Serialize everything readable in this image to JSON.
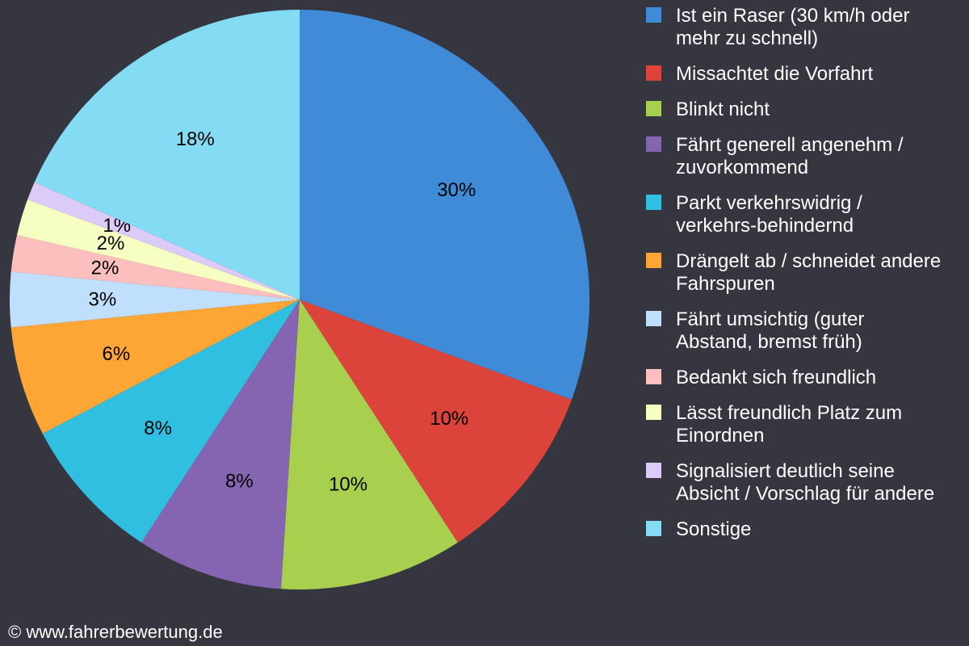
{
  "chart_data": {
    "type": "pie",
    "legend_position": "right",
    "slices": [
      {
        "label": "Ist ein Raser (30 km/h oder\nmehr zu schnell)",
        "value": 30,
        "display": "30%",
        "color": "#3f8bd8"
      },
      {
        "label": "Missachtet die Vorfahrt",
        "value": 10,
        "display": "10%",
        "color": "#dc443b"
      },
      {
        "label": "Blinkt nicht",
        "value": 10,
        "display": "10%",
        "color": "#a8cf4e"
      },
      {
        "label": "Fährt generell angenehm /\nzuvorkommend",
        "value": 8,
        "display": "8%",
        "color": "#8564b1"
      },
      {
        "label": "Parkt verkehrswidrig /\nverkehrs-behindernd",
        "value": 8,
        "display": "8%",
        "color": "#31bfe1"
      },
      {
        "label": "Drängelt ab / schneidet andere\nFahrspuren",
        "value": 6,
        "display": "6%",
        "color": "#fda535"
      },
      {
        "label": "Fährt umsichtig (guter\nAbstand, bremst früh)",
        "value": 3,
        "display": "3%",
        "color": "#bfdffd"
      },
      {
        "label": "Bedankt sich freundlich",
        "value": 2,
        "display": "2%",
        "color": "#fdbebe"
      },
      {
        "label": "Lässt freundlich Platz zum\nEinordnen",
        "value": 2,
        "display": "2%",
        "color": "#f6fec1"
      },
      {
        "label": "Signalisiert deutlich seine\nAbsicht / Vorschlag für andere",
        "value": 1,
        "display": "1%",
        "color": "#dccbf8"
      },
      {
        "label": "Sonstige",
        "value": 18,
        "display": "18%",
        "color": "#84dcf4"
      }
    ]
  },
  "footer": {
    "copyright": "© www.fahrerbewertung.de"
  }
}
